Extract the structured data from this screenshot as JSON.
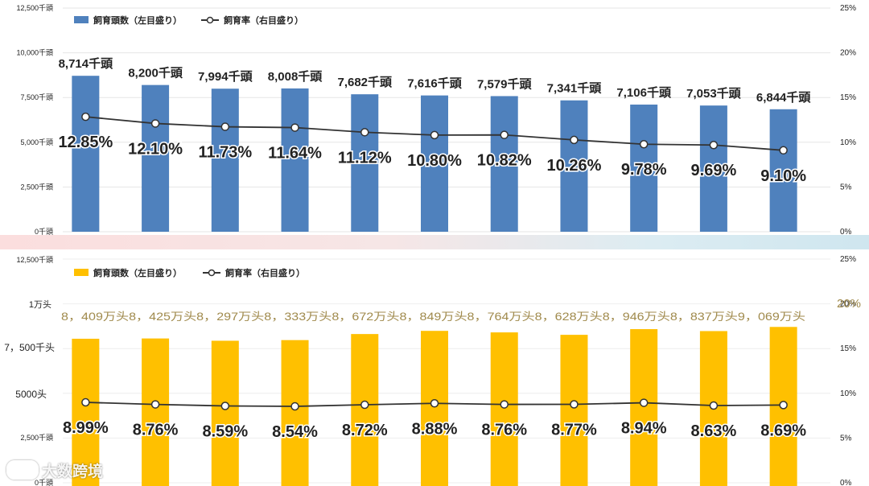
{
  "chart_data": [
    {
      "type": "bar",
      "series_bar_label": "飼育頭数（左目盛り）",
      "series_line_label": "飼育率（右目盛り）",
      "bar_color": "#4f81bd",
      "line_color": "#333333",
      "y_left_ticks": [
        "0千頭",
        "2,500千頭",
        "5,000千頭",
        "7,500千頭",
        "10,000千頭",
        "12,500千頭"
      ],
      "y_left_max": 12500,
      "y_right_ticks": [
        "0%",
        "5%",
        "10%",
        "15%",
        "20%",
        "25%"
      ],
      "y_right_max": 25,
      "values": [
        8714,
        8200,
        7994,
        8008,
        7682,
        7616,
        7579,
        7341,
        7106,
        7053,
        6844
      ],
      "value_labels": [
        "8,714千頭",
        "8,200千頭",
        "7,994千頭",
        "8,008千頭",
        "7,682千頭",
        "7,616千頭",
        "7,579千頭",
        "7,341千頭",
        "7,106千頭",
        "7,053千頭",
        "6,844千頭"
      ],
      "rates": [
        12.85,
        12.1,
        11.73,
        11.64,
        11.12,
        10.8,
        10.82,
        10.26,
        9.78,
        9.69,
        9.1
      ],
      "rate_labels": [
        "12.85%",
        "12.10%",
        "11.73%",
        "11.64%",
        "11.12%",
        "10.80%",
        "10.82%",
        "10.26%",
        "9.78%",
        "9.69%",
        "9.10%"
      ]
    },
    {
      "type": "bar",
      "series_bar_label": "飼育頭数（左目盛り）",
      "series_line_label": "飼育率（右目盛り）",
      "bar_color": "#ffc000",
      "line_color": "#333333",
      "y_left_ticks": [
        "0千頭",
        "2,500千頭",
        "5000头",
        "7，500千头",
        "1万头",
        "12,500千頭"
      ],
      "y_left_max": 12500,
      "y_right_ticks": [
        "0%",
        "5%",
        "10%",
        "15%",
        "20%",
        "25%"
      ],
      "y_right_max": 25,
      "values": [
        8409,
        8425,
        8297,
        8333,
        8672,
        8849,
        8764,
        8628,
        8946,
        8837,
        9069
      ],
      "value_labels_line": "8，409万头8，425万头8，297万头8，333万头8，672万头8，849万头8，764万头8，628万头8，946万头8，837万头9，069万头",
      "rates": [
        8.99,
        8.76,
        8.59,
        8.54,
        8.72,
        8.88,
        8.76,
        8.77,
        8.94,
        8.63,
        8.69
      ],
      "rate_labels": [
        "8.99%",
        "8.76%",
        "8.59%",
        "8.54%",
        "8.72%",
        "8.88%",
        "8.76%",
        "8.77%",
        "8.94%",
        "8.63%",
        "8.69%"
      ]
    }
  ],
  "watermark": {
    "text": "大数跨境"
  }
}
